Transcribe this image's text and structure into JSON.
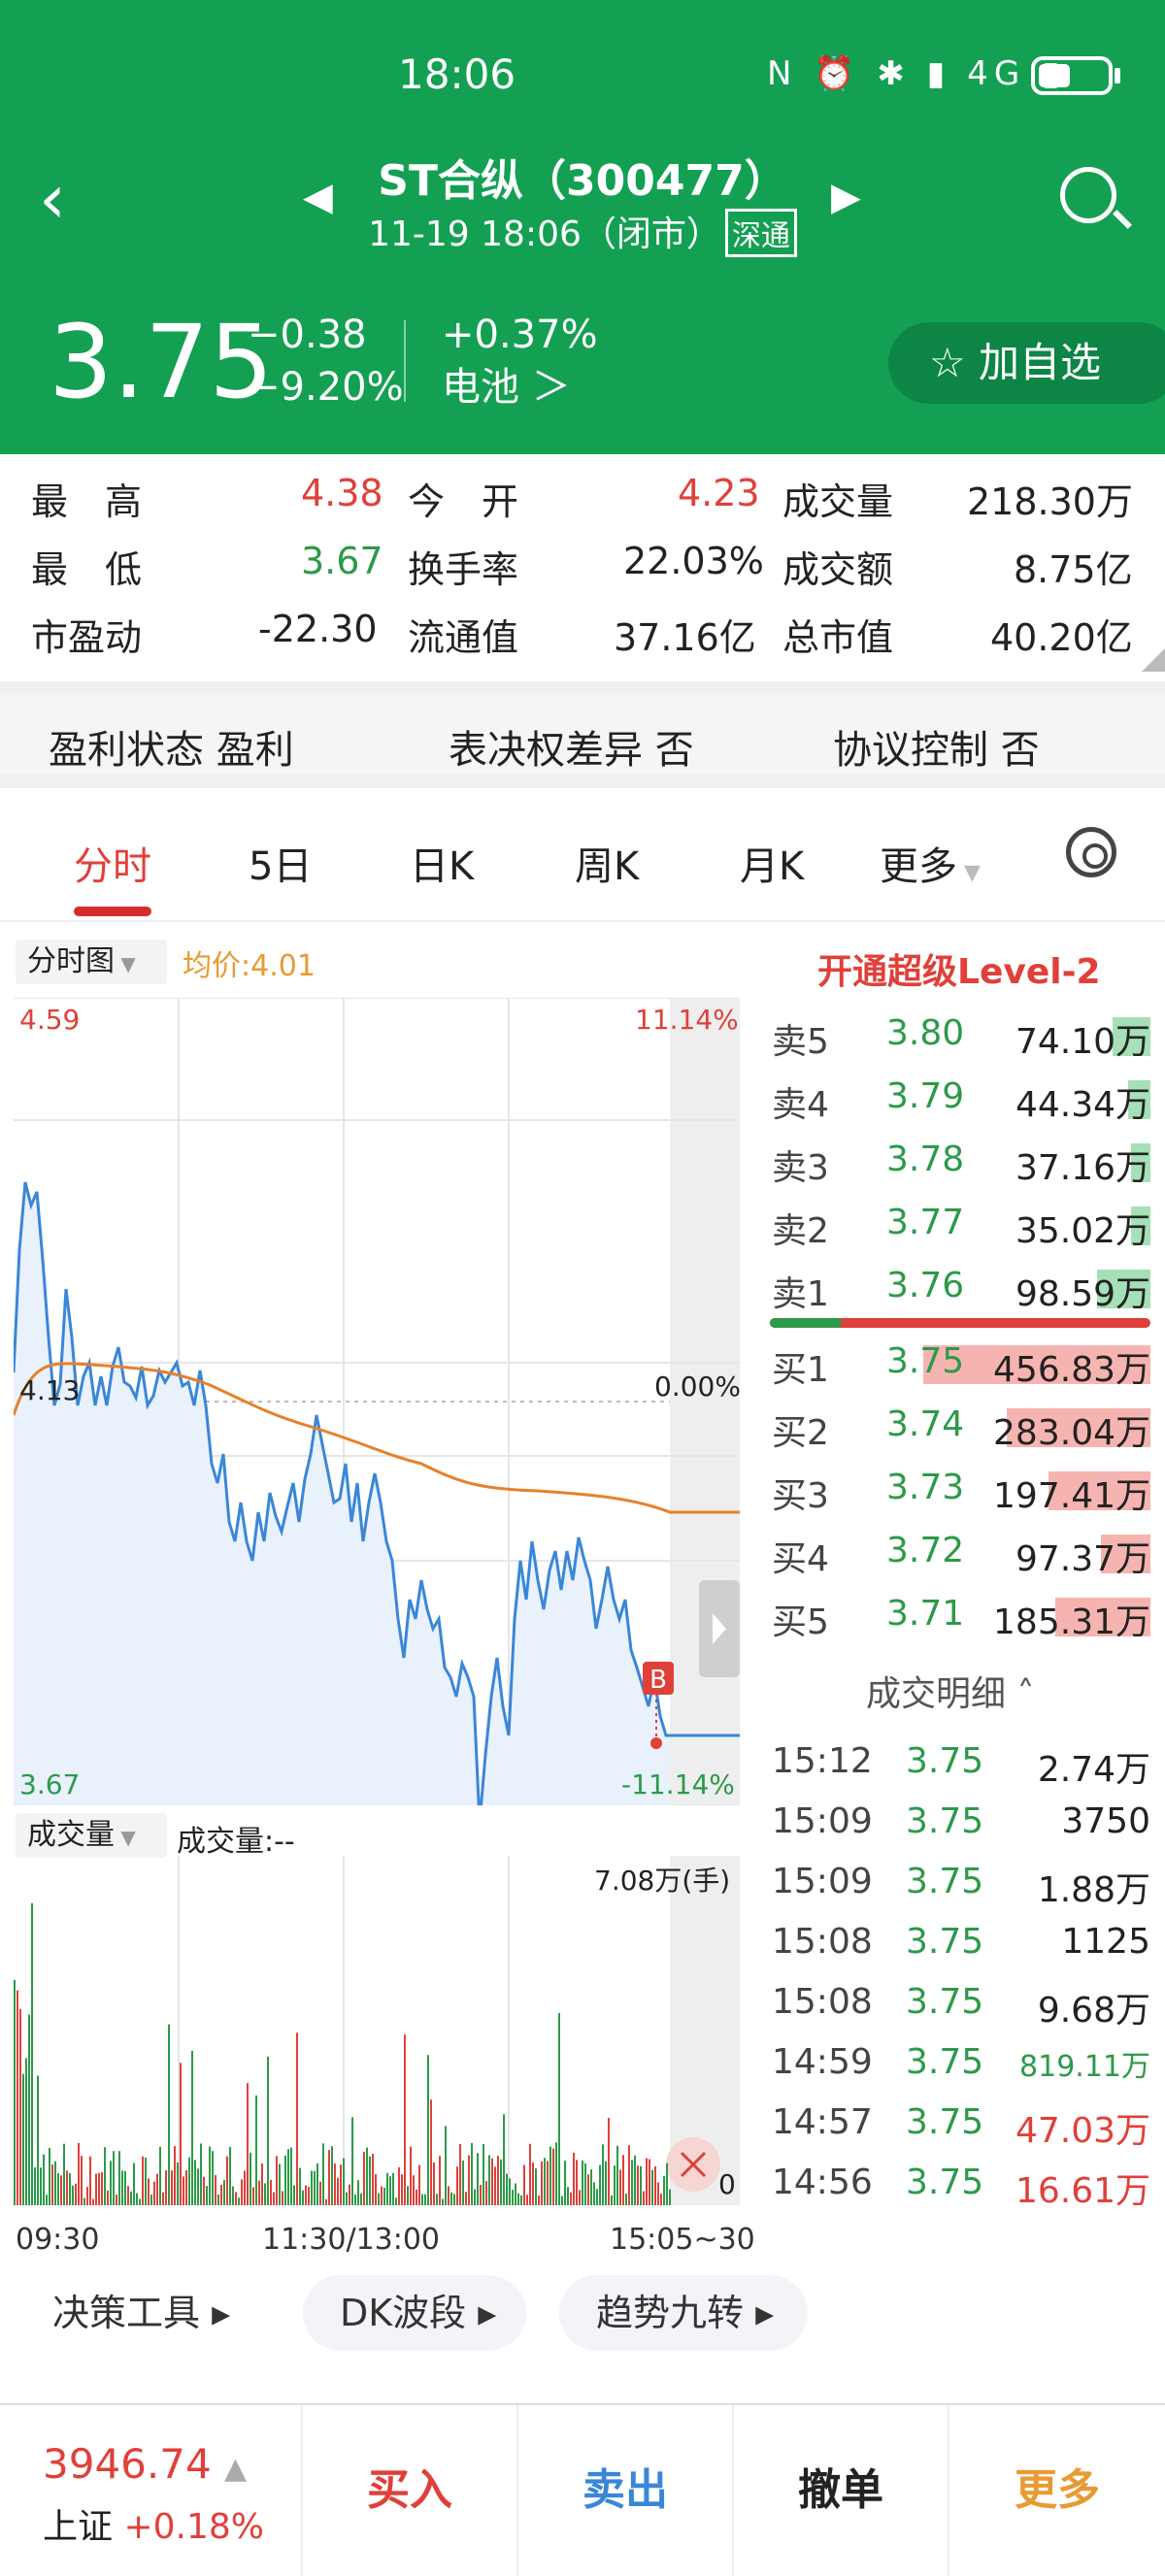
{
  "status": {
    "time": "18:06",
    "icons": "N ⏰ ✱ ▮ 4G ▮"
  },
  "header": {
    "name": "ST合纵（300477）",
    "sub": "11-19 18:06（闭市）",
    "badge": "深通",
    "price": "3.75",
    "change": "−0.38",
    "change_pct": "−9.20%",
    "sector_pct": "+0.37%",
    "sector": "电池 ＞",
    "watch": "☆ 加自选"
  },
  "stats": {
    "high_label": "最　高",
    "high": "4.38",
    "open_label": "今　开",
    "open": "4.23",
    "volume_label": "成交量",
    "volume": "218.30万",
    "low_label": "最　低",
    "low": "3.67",
    "turnover_label": "换手率",
    "turnover": "22.03%",
    "amount_label": "成交额",
    "amount": "8.75亿",
    "pe_label": "市盈动",
    "pe": "-22.30",
    "float_label": "流通值",
    "float": "37.16亿",
    "cap_label": "总市值",
    "cap": "40.20亿"
  },
  "tags": {
    "profit": "盈利状态 盈利",
    "voting": "表决权差异 否",
    "control": "协议控制 否"
  },
  "tabs": [
    "分时",
    "5日",
    "日K",
    "周K",
    "月K",
    "更多"
  ],
  "chart": {
    "mode": "分时图",
    "avg": "均价:4.01",
    "top_price": "4.59",
    "top_pct": "11.14%",
    "mid_price": "4.13",
    "mid_pct": "0.00%",
    "bottom_price": "3.67",
    "bottom_pct": "-11.14%",
    "marker": "B",
    "vol_mode": "成交量",
    "vol_label": "成交量:--",
    "vol_max": "7.08万(手)",
    "vol_zero": "0",
    "x_start": "09:30",
    "x_mid": "11:30/13:00",
    "x_end": "15:05~30"
  },
  "level2": "开通超级Level-2",
  "asks": [
    {
      "label": "卖5",
      "price": "3.80",
      "vol": "74.10万",
      "fill": 0.1
    },
    {
      "label": "卖4",
      "price": "3.79",
      "vol": "44.34万",
      "fill": 0.06
    },
    {
      "label": "卖3",
      "price": "3.78",
      "vol": "37.16万",
      "fill": 0.05
    },
    {
      "label": "卖2",
      "price": "3.77",
      "vol": "35.02万",
      "fill": 0.05
    },
    {
      "label": "卖1",
      "price": "3.76",
      "vol": "98.59万",
      "fill": 0.14
    }
  ],
  "bids": [
    {
      "label": "买1",
      "price": "3.75",
      "vol": "456.83万",
      "fill": 0.6
    },
    {
      "label": "买2",
      "price": "3.74",
      "vol": "283.04万",
      "fill": 0.38
    },
    {
      "label": "买3",
      "price": "3.73",
      "vol": "197.41万",
      "fill": 0.27
    },
    {
      "label": "买4",
      "price": "3.72",
      "vol": "97.37万",
      "fill": 0.13
    },
    {
      "label": "买5",
      "price": "3.71",
      "vol": "185.31万",
      "fill": 0.25
    }
  ],
  "detail_title": "成交明细 ˄",
  "trades": [
    {
      "time": "15:12",
      "price": "3.75",
      "vol": "2.74万",
      "color": "#222"
    },
    {
      "time": "15:09",
      "price": "3.75",
      "vol": "3750",
      "color": "#222"
    },
    {
      "time": "15:09",
      "price": "3.75",
      "vol": "1.88万",
      "color": "#222"
    },
    {
      "time": "15:08",
      "price": "3.75",
      "vol": "1125",
      "color": "#222"
    },
    {
      "time": "15:08",
      "price": "3.75",
      "vol": "9.68万",
      "color": "#222"
    },
    {
      "time": "14:59",
      "price": "3.75",
      "vol": "819.11万",
      "color": "#2c9a49"
    },
    {
      "time": "14:57",
      "price": "3.75",
      "vol": "47.03万",
      "color": "#e0403a"
    },
    {
      "time": "14:56",
      "price": "3.75",
      "vol": "16.61万",
      "color": "#e0403a"
    }
  ],
  "tools": [
    "决策工具 ▸",
    "DK波段 ▸",
    "趋势九转 ▸"
  ],
  "index": {
    "value": "3946.74",
    "name": "上证",
    "pct": "+0.18%"
  },
  "actions": {
    "buy": "买入",
    "sell": "卖出",
    "cancel": "撤单",
    "more": "更多"
  },
  "colors": {
    "header": "#14a053",
    "up": "#e0403a",
    "down": "#2c9a49",
    "avg": "#e89a32",
    "line": "#3a86d8"
  }
}
